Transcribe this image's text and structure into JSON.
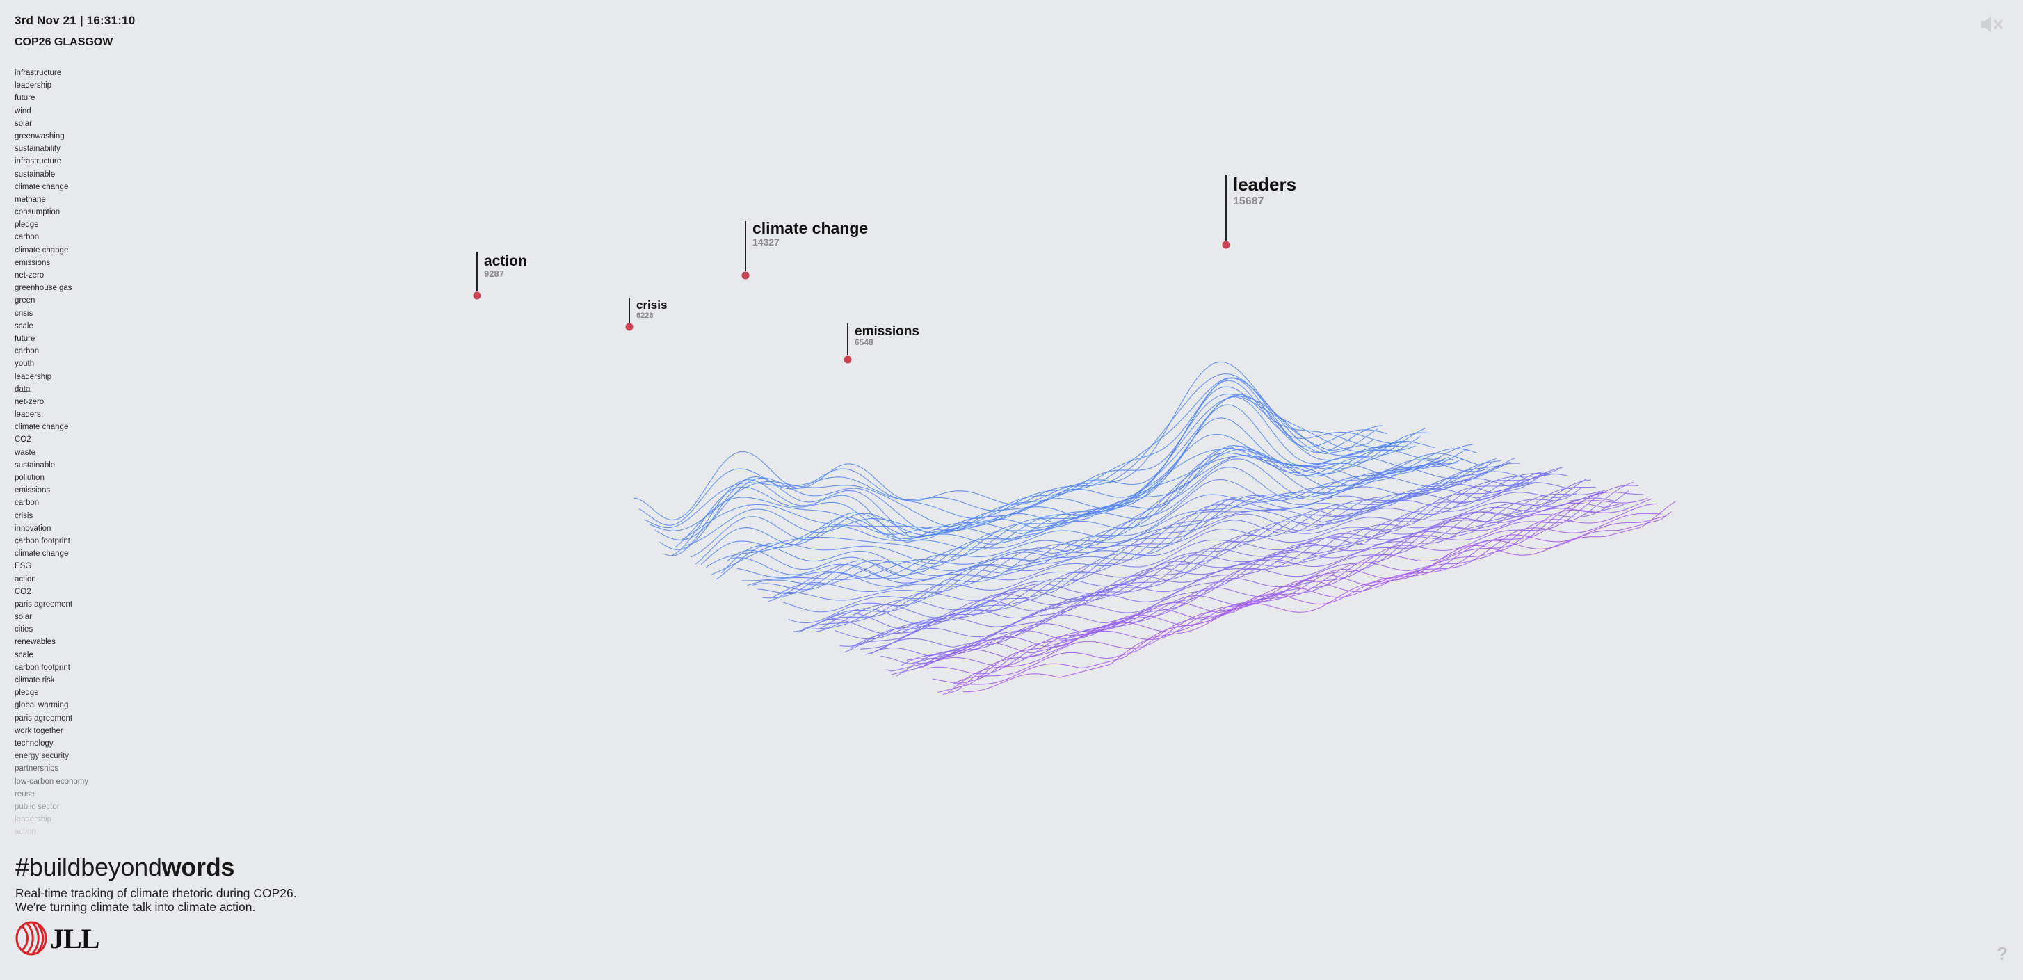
{
  "header": {
    "timestamp": "3rd Nov 21 | 16:31:10",
    "event": "COP26 GLASGOW"
  },
  "feed": [
    "infrastructure",
    "leadership",
    "future",
    "wind",
    "solar",
    "greenwashing",
    "sustainability",
    "infrastructure",
    "sustainable",
    "climate change",
    "methane",
    "consumption",
    "pledge",
    "carbon",
    "climate change",
    "emissions",
    "net-zero",
    "greenhouse gas",
    "green",
    "crisis",
    "scale",
    "future",
    "carbon",
    "youth",
    "leadership",
    "data",
    "net-zero",
    "leaders",
    "climate change",
    "CO2",
    "waste",
    "sustainable",
    "pollution",
    "emissions",
    "carbon",
    "crisis",
    "innovation",
    "carbon footprint",
    "climate change",
    "ESG",
    "action",
    "CO2",
    "paris agreement",
    "solar",
    "cities",
    "renewables",
    "scale",
    "carbon footprint",
    "climate risk",
    "pledge",
    "global warming",
    "paris agreement",
    "work together",
    "technology",
    "energy security",
    "partnerships",
    "low-carbon economy",
    "reuse",
    "public sector",
    "leadership",
    "action"
  ],
  "peaks": [
    {
      "word": "action",
      "count": "9287"
    },
    {
      "word": "crisis",
      "count": "6226"
    },
    {
      "word": "climate change",
      "count": "14327"
    },
    {
      "word": "emissions",
      "count": "6548"
    },
    {
      "word": "leaders",
      "count": "15687"
    }
  ],
  "footer": {
    "hashtag_light": "#buildbeyond",
    "hashtag_bold": "words",
    "tagline1": "Real-time tracking of climate rhetoric during COP26.",
    "tagline2": "We're turning climate talk into climate action.",
    "logo_text": "JLL"
  },
  "controls": {
    "help": "?",
    "mute_icon": "speaker-muted-icon"
  },
  "colors": {
    "background": "#e8e9ec",
    "peak_top": "#f07e58",
    "peak_mid": "#ee5aa5",
    "mesh_violet": "#a855f0",
    "mesh_blue": "#3d8bf5",
    "brand_red": "#d6262b"
  }
}
